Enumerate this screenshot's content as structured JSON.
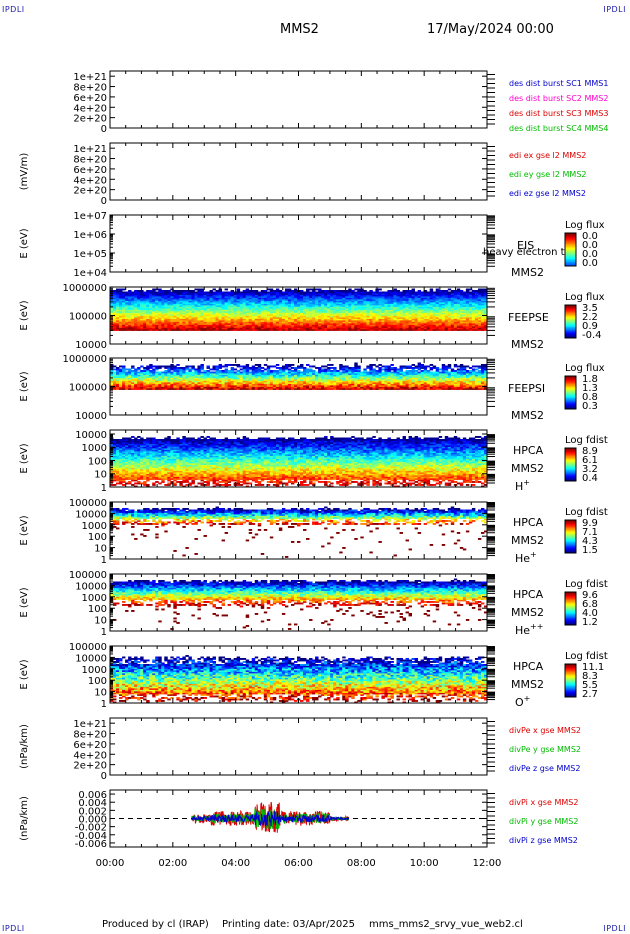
{
  "header": {
    "corner_label": "IPDLI",
    "mission": "MMS2",
    "datetime": "17/May/2024 00:00"
  },
  "footer": {
    "producer": "Produced by cl (IRAP)",
    "printing_date": "Printing date: 03/Apr/2025",
    "filename": "mms_mms2_srvy_vue_web2.cl"
  },
  "chart_data": {
    "type": "heatmap",
    "x_range_hours": [
      0,
      12
    ],
    "x_ticks": [
      "00:00",
      "02:00",
      "04:00",
      "06:00",
      "08:00",
      "10:00",
      "12:00"
    ],
    "panels": [
      {
        "id": "p1",
        "kind": "line",
        "ylabel": "",
        "yrange": [
          0,
          1.1e+21
        ],
        "ytick_labels": [
          "0",
          "2e+20",
          "4e+20",
          "6e+20",
          "8e+20",
          "1e+21"
        ],
        "ytick_values": [
          0,
          2e+20,
          4e+20,
          6e+20,
          8e+20,
          1e+21
        ],
        "legend": [
          {
            "text": "des dist burst SC1 MMS1",
            "color": "#0000cc"
          },
          {
            "text": "des dist burst SC2 MMS2",
            "color": "#ff00cc"
          },
          {
            "text": "des dist burst SC3 MMS3",
            "color": "#dd0000"
          },
          {
            "text": "des dist burst SC4 MMS4",
            "color": "#00bb00"
          }
        ]
      },
      {
        "id": "p2",
        "kind": "line",
        "ylabel": "(mV/m)",
        "yrange": [
          0,
          1.1e+21
        ],
        "ytick_labels": [
          "0",
          "2e+20",
          "4e+20",
          "6e+20",
          "8e+20",
          "1e+21"
        ],
        "ytick_values": [
          0,
          2e+20,
          4e+20,
          6e+20,
          8e+20,
          1e+21
        ],
        "legend": [
          {
            "text": "edi ex gse l2 MMS2",
            "color": "#dd0000"
          },
          {
            "text": "edi ey gse l2 MMS2",
            "color": "#00bb00"
          },
          {
            "text": "edi ez gse l2 MMS2",
            "color": "#0000cc"
          }
        ]
      },
      {
        "id": "p3",
        "kind": "empty-spectrogram",
        "ylabel": "E (eV)",
        "yscale": "log",
        "yrange": [
          10000.0,
          10000000.0
        ],
        "ytick_labels": [
          "1e+04",
          "1e+05",
          "1e+06",
          "1e+07"
        ],
        "ytick_values": [
          10000.0,
          100000.0,
          1000000.0,
          10000000.0
        ],
        "labels": [
          "EIS",
          "MMS2"
        ],
        "overlay_text": "heavy electron to",
        "colorbar": {
          "title": "Log flux",
          "ticks": [
            "0.0",
            "0.0",
            "0.0",
            "0.0"
          ]
        }
      },
      {
        "id": "p4",
        "kind": "spectrogram",
        "ylabel": "E (eV)",
        "yscale": "log",
        "yrange": [
          10000,
          1000000
        ],
        "ytick_labels": [
          "10000",
          "100000",
          "1000000"
        ],
        "ytick_values": [
          10000,
          100000,
          1000000
        ],
        "labels": [
          "FEEPSE",
          "MMS2"
        ],
        "colorbar": {
          "title": "Log flux",
          "ticks": [
            "3.5",
            "2.2",
            "0.9",
            "-0.4"
          ]
        },
        "signal": {
          "from_hour": 0,
          "to_hour": 12,
          "top": 0.95,
          "bottom": 0.25,
          "floor": 0.04,
          "noise": 0.08,
          "redband": [
            0.12,
            0.25
          ]
        }
      },
      {
        "id": "p5",
        "kind": "spectrogram",
        "ylabel": "E (eV)",
        "yscale": "log",
        "yrange": [
          10000,
          1000000
        ],
        "ytick_labels": [
          "10000",
          "100000",
          "1000000"
        ],
        "ytick_values": [
          10000,
          100000,
          1000000
        ],
        "labels": [
          "FEEPSI",
          "MMS2"
        ],
        "colorbar": {
          "title": "Log flux",
          "ticks": [
            "1.8",
            "1.3",
            "0.8",
            "0.3"
          ]
        },
        "signal": {
          "from_hour": 0,
          "to_hour": 12,
          "top": 0.88,
          "bottom": 0.45,
          "floor": 0.1,
          "noise": 0.12,
          "speckle": 0.3
        }
      },
      {
        "id": "p6",
        "kind": "spectrogram",
        "ylabel": "E (eV)",
        "yscale": "log",
        "yrange": [
          1,
          20000
        ],
        "ytick_labels": [
          "1",
          "10",
          "100",
          "1000",
          "10000"
        ],
        "ytick_values": [
          1,
          10,
          100,
          1000,
          10000
        ],
        "labels": [
          "HPCA",
          "MMS2",
          "H+"
        ],
        "colorbar": {
          "title": "Log fdist",
          "ticks": [
            "8.9",
            "6.1",
            "3.2",
            "0.4"
          ]
        },
        "signal": {
          "from_hour": 0,
          "to_hour": 12,
          "top": 0.86,
          "bottom": 0.02,
          "floor": 0.1,
          "noise": 0.1,
          "tail": 0.35
        }
      },
      {
        "id": "p7",
        "kind": "spectrogram",
        "ylabel": "E (eV)",
        "yscale": "log",
        "yrange": [
          1,
          100000
        ],
        "ytick_labels": [
          "1",
          "10",
          "100",
          "1000",
          "10000",
          "100000"
        ],
        "ytick_values": [
          1,
          10,
          100,
          1000,
          10000,
          100000
        ],
        "labels": [
          "HPCA",
          "MMS2",
          "He+"
        ],
        "colorbar": {
          "title": "Log fdist",
          "ticks": [
            "9.9",
            "7.1",
            "4.3",
            "1.5"
          ]
        },
        "signal": {
          "from_hour": 0,
          "to_hour": 12,
          "top": 0.88,
          "bottom": 0.6,
          "floor": 0.15,
          "noise": 0.15,
          "tail": 0.15
        }
      },
      {
        "id": "p8",
        "kind": "spectrogram",
        "ylabel": "E (eV)",
        "yscale": "log",
        "yrange": [
          1,
          100000
        ],
        "ytick_labels": [
          "1",
          "10",
          "100",
          "1000",
          "10000",
          "100000"
        ],
        "ytick_values": [
          1,
          10,
          100,
          1000,
          10000,
          100000
        ],
        "labels": [
          "HPCA",
          "MMS2",
          "He++"
        ],
        "colorbar": {
          "title": "Log fdist",
          "ticks": [
            "9.6",
            "6.8",
            "4.0",
            "1.2"
          ]
        },
        "signal": {
          "from_hour": 0,
          "to_hour": 12,
          "top": 0.88,
          "bottom": 0.45,
          "floor": 0.15,
          "noise": 0.12,
          "tail": 0.2
        }
      },
      {
        "id": "p9",
        "kind": "spectrogram",
        "ylabel": "E (eV)",
        "yscale": "log",
        "yrange": [
          1,
          100000
        ],
        "ytick_labels": [
          "1",
          "10",
          "100",
          "1000",
          "10000",
          "100000"
        ],
        "ytick_values": [
          1,
          10,
          100,
          1000,
          10000,
          100000
        ],
        "labels": [
          "HPCA",
          "MMS2",
          "O+"
        ],
        "colorbar": {
          "title": "Log fdist",
          "ticks": [
            "11.1",
            "8.3",
            "5.5",
            "2.7"
          ]
        },
        "signal": {
          "from_hour": 0,
          "to_hour": 12,
          "top": 0.8,
          "bottom": 0.05,
          "floor": 0.2,
          "noise": 0.18,
          "tail": 0.4,
          "speckle": 0.35
        }
      },
      {
        "id": "p10",
        "kind": "line",
        "ylabel": "(nPa/km)",
        "yrange": [
          0,
          1.1e+21
        ],
        "ytick_labels": [
          "0",
          "2e+20",
          "4e+20",
          "6e+20",
          "8e+20",
          "1e+21"
        ],
        "ytick_values": [
          0,
          2e+20,
          4e+20,
          6e+20,
          8e+20,
          1e+21
        ],
        "legend": [
          {
            "text": "divPe x gse MMS2",
            "color": "#dd0000"
          },
          {
            "text": "divPe y gse MMS2",
            "color": "#00bb00"
          },
          {
            "text": "divPe z gse MMS2",
            "color": "#0000cc"
          }
        ]
      },
      {
        "id": "p11",
        "kind": "timeseries",
        "ylabel": "(nPa/km)",
        "yrange": [
          -0.007,
          0.007
        ],
        "ytick_labels": [
          "-0.006",
          "-0.004",
          "-0.002",
          "0.000",
          "0.002",
          "0.004",
          "0.006"
        ],
        "ytick_values": [
          -0.006,
          -0.004,
          -0.002,
          0,
          0.002,
          0.004,
          0.006
        ],
        "legend": [
          {
            "text": "divPi x gse MMS2",
            "color": "#dd0000"
          },
          {
            "text": "divPi y gse MMS2",
            "color": "#00bb00"
          },
          {
            "text": "divPi z gse MMS2",
            "color": "#0000cc"
          }
        ],
        "activity_hours": [
          2.6,
          7.6
        ],
        "series_amplitude": [
          0.0018,
          0.0012,
          0.0009
        ]
      }
    ]
  }
}
